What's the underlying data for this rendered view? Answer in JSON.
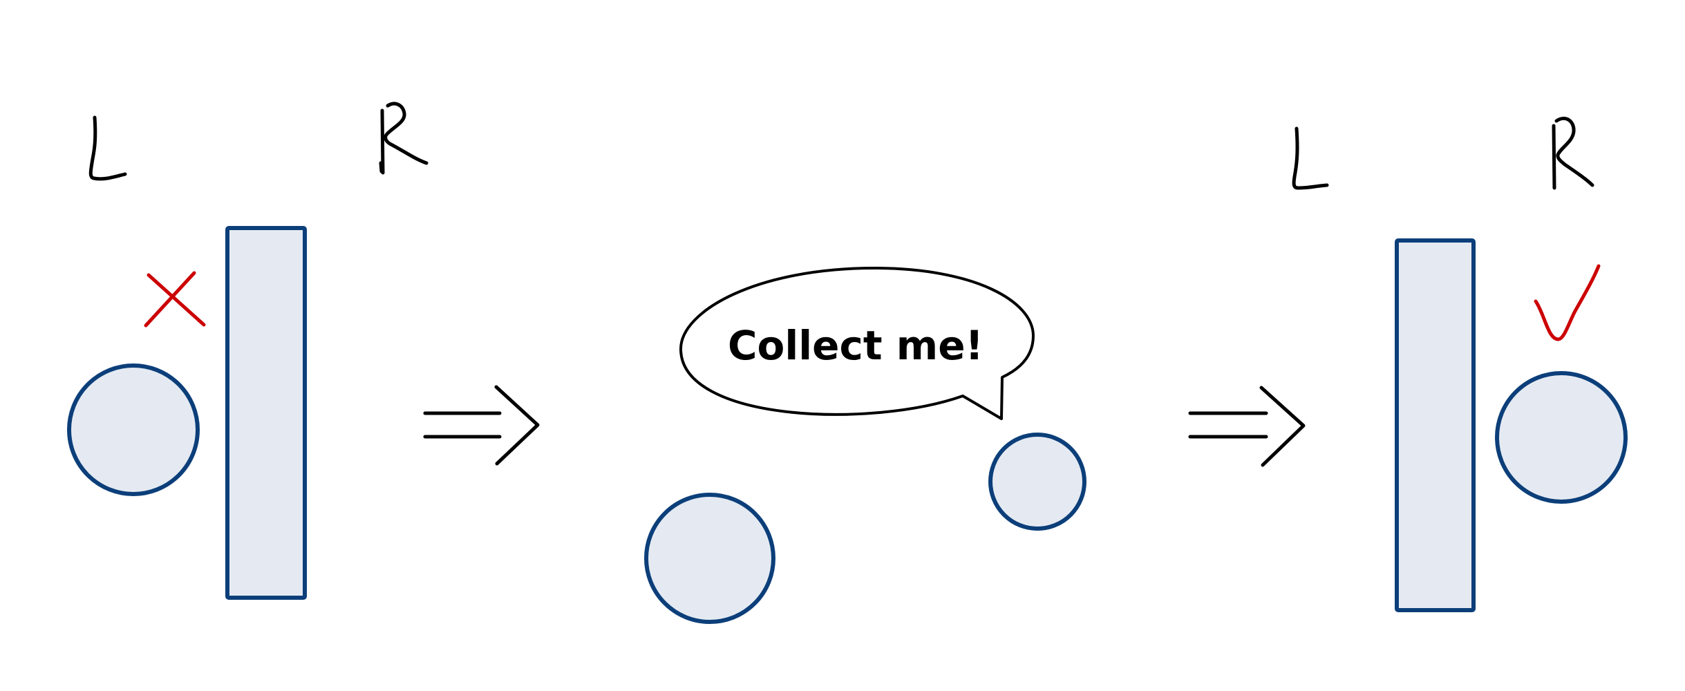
{
  "panels": {
    "before": {
      "left_label": "L",
      "right_label": "R",
      "verdict": "cross-mark-icon",
      "verdict_color": "#cc0000"
    },
    "middle": {
      "speech_bubble_text": "Collect me!"
    },
    "after": {
      "left_label": "L",
      "right_label": "R",
      "verdict": "check-mark-icon",
      "verdict_color": "#cc0000"
    }
  },
  "arrows": [
    "double-arrow-icon",
    "double-arrow-icon"
  ],
  "colors": {
    "shape_fill": "#e5eaf2",
    "shape_stroke": "#0c3f7a",
    "ink": "#000000",
    "mark": "#cc0000"
  }
}
